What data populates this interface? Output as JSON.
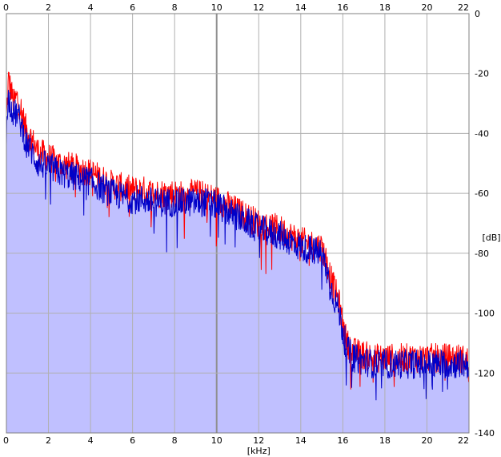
{
  "chart_data": {
    "type": "area",
    "title": "",
    "xlabel": "[kHz]",
    "ylabel": "[dB]",
    "xlim": [
      0,
      22
    ],
    "ylim": [
      -140,
      0
    ],
    "x_ticks": [
      0,
      2,
      4,
      6,
      8,
      10,
      12,
      14,
      16,
      18,
      20,
      22
    ],
    "x_tick_labels": [
      "0",
      "2",
      "4",
      "6",
      "8",
      "10",
      "12",
      "14",
      "16",
      "18",
      "20",
      "22"
    ],
    "y_ticks": [
      0,
      -20,
      -40,
      -60,
      -80,
      -100,
      -120,
      -140
    ],
    "y_tick_labels": [
      "0",
      "-20",
      "-40",
      "-60",
      "-80",
      "-100",
      "-120",
      "-140"
    ],
    "grid": true,
    "x_envelope_khz": [
      0,
      0.1,
      0.2,
      0.35,
      0.5,
      0.7,
      0.9,
      1.2,
      1.5,
      2,
      2.5,
      3,
      3.5,
      4,
      4.5,
      5,
      5.5,
      6,
      6.5,
      7,
      7.5,
      8,
      8.5,
      9,
      9.5,
      10,
      10.5,
      11,
      11.5,
      12,
      12.5,
      13,
      13.5,
      14,
      14.5,
      15,
      15.2,
      15.5,
      15.8,
      16,
      16.2,
      16.5,
      17,
      17.5,
      18,
      18.5,
      19,
      19.5,
      20,
      20.5,
      21,
      21.5,
      22
    ],
    "series": [
      {
        "color": "#ff0000",
        "values": [
          -35,
          -22,
          -25,
          -30,
          -28,
          -32,
          -38,
          -42,
          -46,
          -48,
          -50,
          -51,
          -52,
          -53,
          -55,
          -57,
          -58,
          -59,
          -59,
          -60,
          -60,
          -60,
          -61,
          -60,
          -61,
          -62,
          -64,
          -66,
          -68,
          -70,
          -71,
          -72,
          -74,
          -76,
          -77,
          -78,
          -82,
          -90,
          -96,
          -104,
          -110,
          -113,
          -114,
          -115,
          -115,
          -115,
          -115,
          -115,
          -115,
          -115,
          -115,
          -115,
          -116
        ]
      },
      {
        "color": "#0000c8",
        "values": [
          -40,
          -28,
          -30,
          -34,
          -33,
          -37,
          -42,
          -46,
          -50,
          -51,
          -53,
          -54,
          -55,
          -56,
          -58,
          -60,
          -61,
          -62,
          -62,
          -63,
          -63,
          -63,
          -63,
          -63,
          -63,
          -64,
          -66,
          -68,
          -70,
          -72,
          -73,
          -74,
          -76,
          -78,
          -79,
          -80,
          -85,
          -93,
          -99,
          -106,
          -112,
          -115,
          -116,
          -117,
          -117,
          -117,
          -117,
          -117,
          -117,
          -117,
          -117,
          -117,
          -117
        ]
      }
    ],
    "fill_color": "#c0c0ff",
    "grid_color": "#b0b0b0",
    "frame_color": "#808080"
  }
}
